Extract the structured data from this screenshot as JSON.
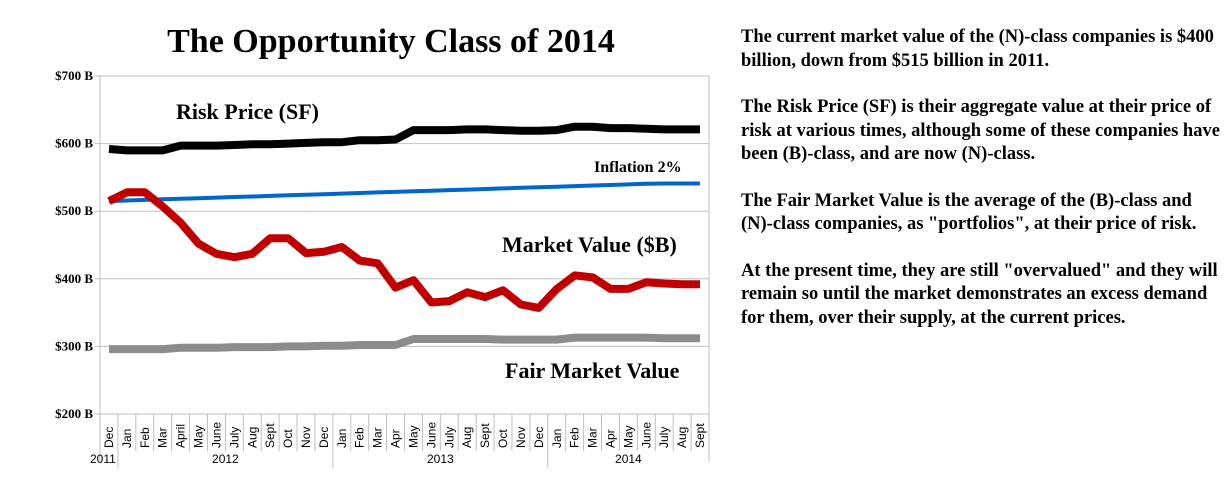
{
  "chart_data": {
    "type": "line",
    "title": "The Opportunity Class of 2014",
    "xlabel": "",
    "ylabel": "",
    "ylim": [
      200,
      700
    ],
    "yticks": [
      200,
      300,
      400,
      500,
      600,
      700
    ],
    "ytick_labels": [
      "$200 B",
      "$300 B",
      "$400 B",
      "$500 B",
      "$600 B",
      "$700 B"
    ],
    "grid": true,
    "x": [
      "Dec",
      "Jan",
      "Feb",
      "Mar",
      "April",
      "May",
      "June",
      "July",
      "Aug",
      "Sept",
      "Oct",
      "Nov",
      "Dec",
      "Jan",
      "Feb",
      "Mar",
      "Apr",
      "May",
      "June",
      "July",
      "Aug",
      "Sept",
      "Oct",
      "Nov",
      "Dec",
      "Jan",
      "Feb",
      "Mar",
      "Apr",
      "May",
      "June",
      "July",
      "Aug",
      "Sept"
    ],
    "year_groups": [
      {
        "label": "2011",
        "start": 0,
        "end": 0
      },
      {
        "label": "2012",
        "start": 1,
        "end": 12
      },
      {
        "label": "2013",
        "start": 13,
        "end": 24
      },
      {
        "label": "2014",
        "start": 25,
        "end": 33
      }
    ],
    "series": [
      {
        "name": "Risk Price (SF)",
        "color": "#000000",
        "values": [
          592,
          590,
          590,
          590,
          597,
          597,
          597,
          598,
          599,
          599,
          600,
          601,
          602,
          602,
          605,
          605,
          606,
          620,
          620,
          620,
          621,
          621,
          620,
          619,
          619,
          620,
          625,
          625,
          623,
          623,
          622,
          621,
          621,
          621
        ]
      },
      {
        "name": "Inflation 2%",
        "color": "#0066CC",
        "values": [
          515,
          515.9,
          516.7,
          517.6,
          518.4,
          519.3,
          520.1,
          521.0,
          521.8,
          522.7,
          523.5,
          524.4,
          525.2,
          526.1,
          526.9,
          527.8,
          528.6,
          529.5,
          530.3,
          531.2,
          532.0,
          532.9,
          533.7,
          534.6,
          535.4,
          536.3,
          537.1,
          538.0,
          538.8,
          539.7,
          540.5,
          541,
          541,
          541
        ]
      },
      {
        "name": "Market Value ($B)",
        "color": "#C00000",
        "values": [
          515,
          528,
          528,
          507,
          483,
          452,
          437,
          432,
          437,
          460,
          460,
          438,
          440,
          447,
          427,
          423,
          387,
          398,
          365,
          367,
          380,
          373,
          383,
          362,
          357,
          385,
          405,
          402,
          385,
          385,
          395,
          393,
          392,
          392
        ]
      },
      {
        "name": "Fair Market Value",
        "color": "#8C8C8C",
        "values": [
          296,
          296,
          296,
          296,
          298,
          298,
          298,
          299,
          299,
          299,
          300,
          300,
          301,
          301,
          302,
          302,
          302,
          311,
          311,
          311,
          311,
          311,
          310,
          310,
          310,
          310,
          313,
          313,
          313,
          313,
          313,
          312,
          312,
          312
        ]
      }
    ],
    "annotations": [
      {
        "text": "Risk Price (SF)",
        "series": "Risk Price (SF)"
      },
      {
        "text": "Inflation 2%",
        "series": "Inflation 2%"
      },
      {
        "text": "Market Value ($B)",
        "series": "Market Value ($B)"
      },
      {
        "text": "Fair Market Value",
        "series": "Fair Market Value"
      }
    ],
    "legend": "none (inline labels)"
  },
  "commentary": [
    "The current market value of the (N)-class companies is $400 billion, down from $515 billion in 2011.",
    "The Risk Price (SF) is their aggregate value at their price of risk at various times, although some of these companies have been (B)-class, and are now (N)-class.",
    "The Fair Market Value is the average of the (B)-class and (N)-class companies, as \"portfolios\", at their price of risk.",
    "At the present time, they are still \"overvalued\" and they will remain so until the market demonstrates an excess demand for them, over their supply, at the current prices."
  ]
}
